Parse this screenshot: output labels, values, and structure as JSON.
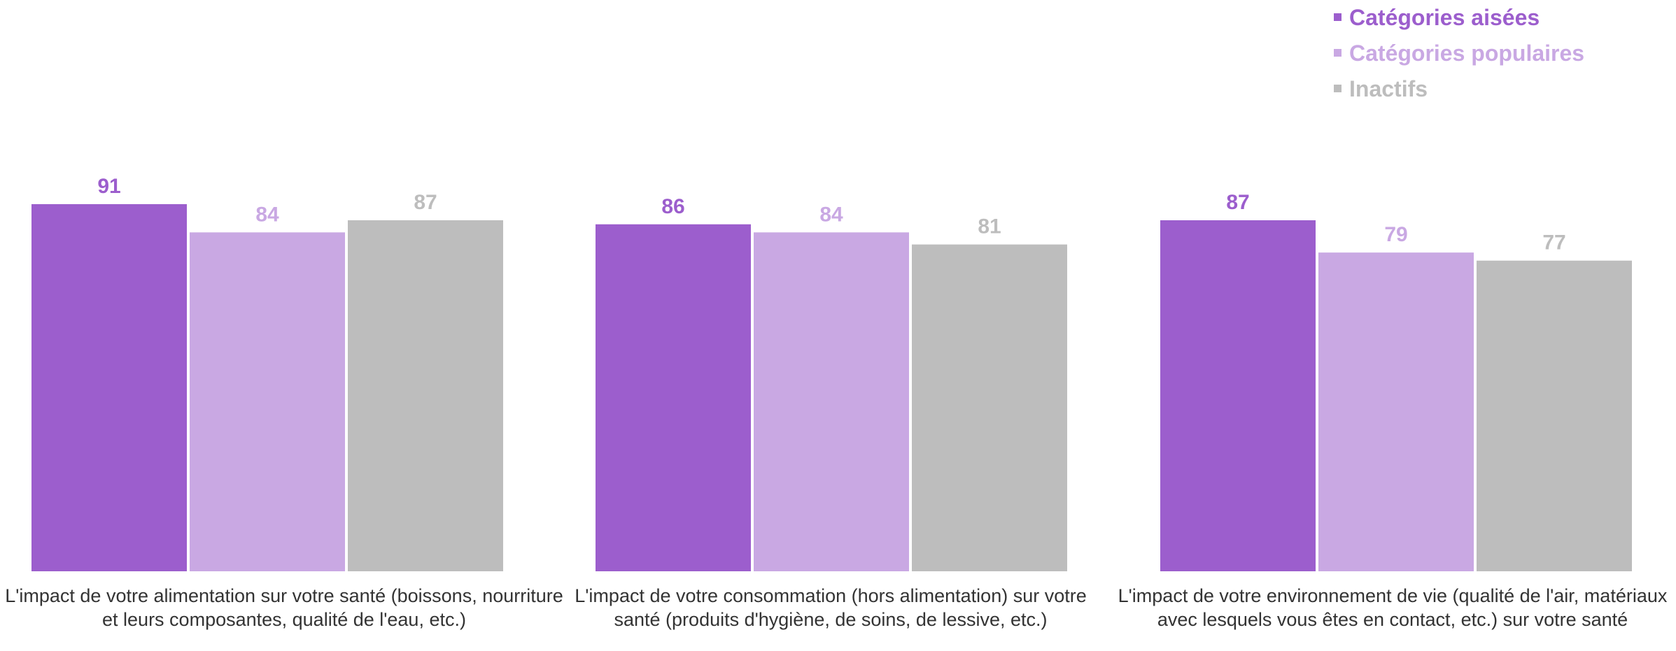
{
  "chart_data": {
    "type": "bar",
    "categories": [
      "L'impact de votre alimentation sur votre santé (boissons, nourriture et leurs composantes, qualité de l'eau, etc.)",
      "L'impact de votre consommation (hors alimentation) sur votre santé (produits d'hygiène, de soins, de lessive, etc.)",
      "L'impact de votre environnement de vie (qualité de l'air, matériaux avec lesquels vous êtes en contact, etc.) sur votre santé"
    ],
    "series": [
      {
        "name": "Catégories aisées",
        "values": [
          91,
          86,
          87
        ],
        "color": "#9c5ecd"
      },
      {
        "name": "Catégories populaires",
        "values": [
          84,
          84,
          79
        ],
        "color": "#c9a8e3"
      },
      {
        "name": "Inactifs",
        "values": [
          87,
          81,
          77
        ],
        "color": "#bdbdbd"
      }
    ],
    "ylim": [
      0,
      100
    ],
    "grid": false,
    "legend": "top-right",
    "data_labels": true
  }
}
